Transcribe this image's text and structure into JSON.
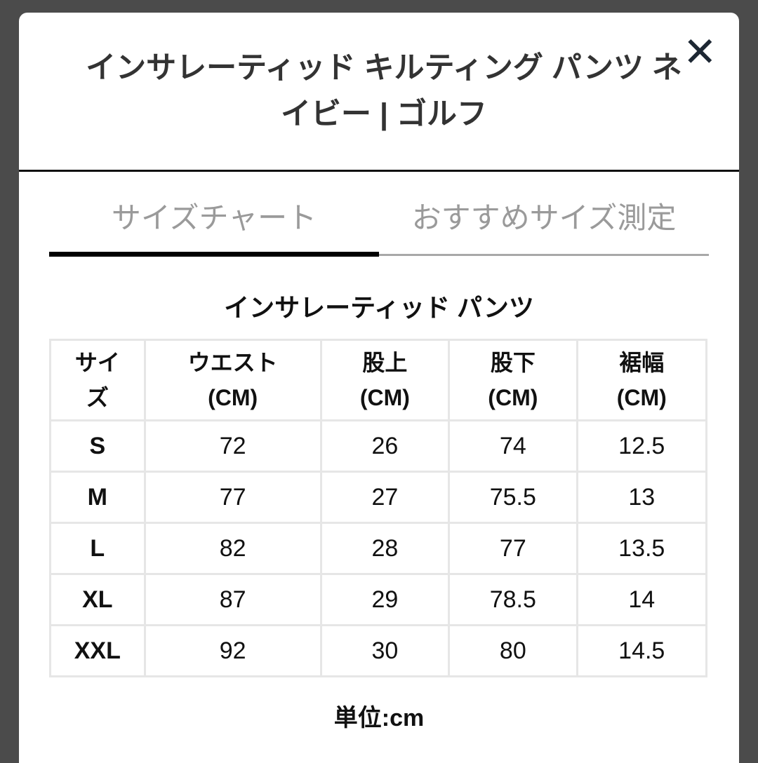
{
  "modal": {
    "title": "インサレーティッド キルティング パンツ ネイビー | ゴルフ",
    "close_icon": "close-icon"
  },
  "tabs": [
    {
      "label": "サイズチャート",
      "active": true
    },
    {
      "label": "おすすめサイズ測定",
      "active": false
    }
  ],
  "chart": {
    "subtitle": "インサレーティッド パンツ",
    "headers": [
      [
        "サイ",
        "ズ"
      ],
      [
        "ウエスト",
        "(CM)"
      ],
      [
        "股上",
        "(CM)"
      ],
      [
        "股下",
        "(CM)"
      ],
      [
        "裾幅",
        "(CM)"
      ]
    ],
    "rows": [
      [
        "S",
        "72",
        "26",
        "74",
        "12.5"
      ],
      [
        "M",
        "77",
        "27",
        "75.5",
        "13"
      ],
      [
        "L",
        "82",
        "28",
        "77",
        "13.5"
      ],
      [
        "XL",
        "87",
        "29",
        "78.5",
        "14"
      ],
      [
        "XXL",
        "92",
        "30",
        "80",
        "14.5"
      ]
    ],
    "unit": "単位:cm"
  }
}
